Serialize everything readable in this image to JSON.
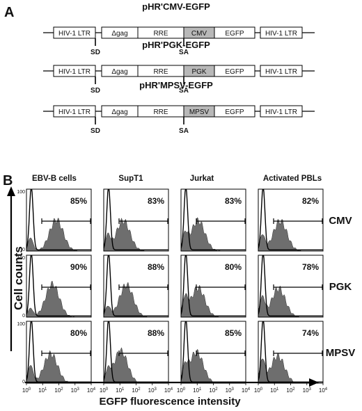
{
  "panel_a": {
    "label": "A",
    "constructs": [
      {
        "title": "pHR'CMV-EGFP",
        "promoter": "CMV"
      },
      {
        "title": "pHR'PGK-EGFP",
        "promoter": "PGK"
      },
      {
        "title": "pHR'MPSV-EGFP",
        "promoter": "MPSV"
      }
    ],
    "elements": {
      "ltr": "HIV-1 LTR",
      "gag": "Δgag",
      "rre": "RRE",
      "egfp": "EGFP"
    },
    "sites": {
      "sd": "SD",
      "sa": "SA"
    },
    "colors": {
      "promoter_fill": "#b8b8b8",
      "box_fill": "#ffffff"
    }
  },
  "panel_b": {
    "label": "B",
    "y_axis_label": "Cell counts",
    "x_axis_label": "EGFP fluorescence intensity",
    "y_tick_top": "100",
    "y_tick_bottom": "0",
    "x_ticks": [
      {
        "base": "10",
        "exp": "0"
      },
      {
        "base": "10",
        "exp": "1"
      },
      {
        "base": "10",
        "exp": "2"
      },
      {
        "base": "10",
        "exp": "3"
      },
      {
        "base": "10",
        "exp": "4"
      }
    ],
    "columns": [
      "EBV-B cells",
      "SupT1",
      "Jurkat",
      "Activated PBLs"
    ],
    "rows": [
      "CMV",
      "PGK",
      "MPSV"
    ],
    "colors": {
      "histogram_fill": "#6e6e6e",
      "control_line": "#000000"
    }
  },
  "chart_data": {
    "type": "histogram-grid",
    "x_scale": "log",
    "xlim": [
      1,
      10000
    ],
    "ylim": [
      0,
      100
    ],
    "percent_positive": [
      [
        "85%",
        "83%",
        "83%",
        "82%"
      ],
      [
        "90%",
        "88%",
        "80%",
        "78%"
      ],
      [
        "80%",
        "88%",
        "85%",
        "74%"
      ]
    ],
    "gated_peak_log10": [
      [
        1.85,
        1.2,
        1.05,
        1.35
      ],
      [
        1.6,
        1.4,
        1.05,
        1.25
      ],
      [
        1.5,
        1.05,
        0.95,
        1.2
      ]
    ]
  }
}
